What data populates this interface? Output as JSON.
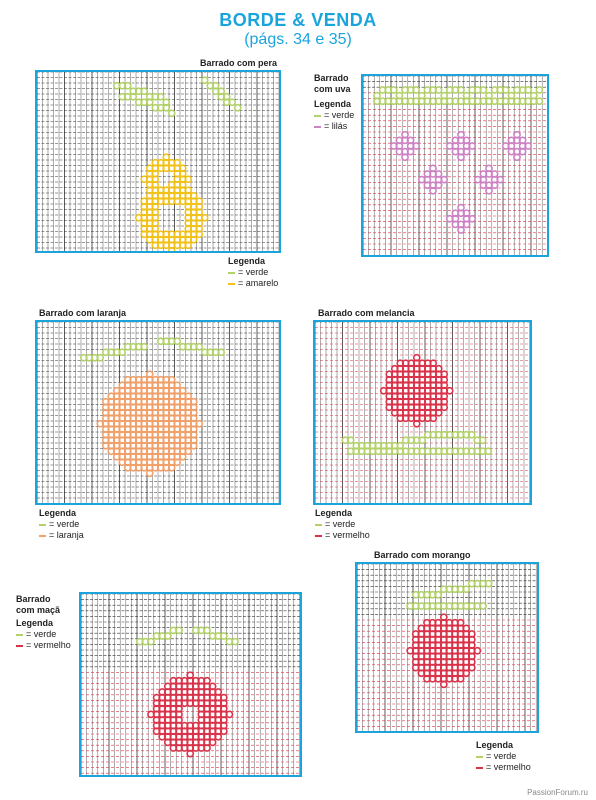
{
  "title": "BORDE & VENDA",
  "subtitle": "(págs. 34 e 35)",
  "legend_title": "Legenda",
  "colors": {
    "green": "#b4d26a",
    "yellow": "#f2c21b",
    "lilac": "#cd82c4",
    "orange": "#f0a06a",
    "red": "#d9334a",
    "grid": "#333333",
    "frame": "#1ba4dc"
  },
  "charts": [
    {
      "id": "pera",
      "caption": "Barrado com pera",
      "legend": [
        {
          "color": "green",
          "sym": "= verde"
        },
        {
          "color": "yellow",
          "sym": "= amarelo"
        }
      ]
    },
    {
      "id": "uva",
      "caption": "Barrado com uva",
      "legend": [
        {
          "color": "green",
          "sym": "= verde"
        },
        {
          "color": "lilac",
          "sym": "= lilás"
        }
      ]
    },
    {
      "id": "laranja",
      "caption": "Barrado com laranja",
      "legend": [
        {
          "color": "green",
          "sym": "= verde"
        },
        {
          "color": "orange",
          "sym": "= laranja"
        }
      ]
    },
    {
      "id": "melancia",
      "caption": "Barrado com melancia",
      "legend": [
        {
          "color": "green",
          "sym": "= verde"
        },
        {
          "color": "red",
          "sym": "= vermelho"
        }
      ]
    },
    {
      "id": "maca",
      "caption": "Barrado com maçã",
      "legend": [
        {
          "color": "green",
          "sym": "= verde"
        },
        {
          "color": "red",
          "sym": "= vermelho"
        }
      ]
    },
    {
      "id": "morango",
      "caption": "Barrado com morango",
      "legend": [
        {
          "color": "green",
          "sym": "= verde"
        },
        {
          "color": "red",
          "sym": "= vermelho"
        }
      ]
    }
  ],
  "watermark": "PassionForum.ru"
}
